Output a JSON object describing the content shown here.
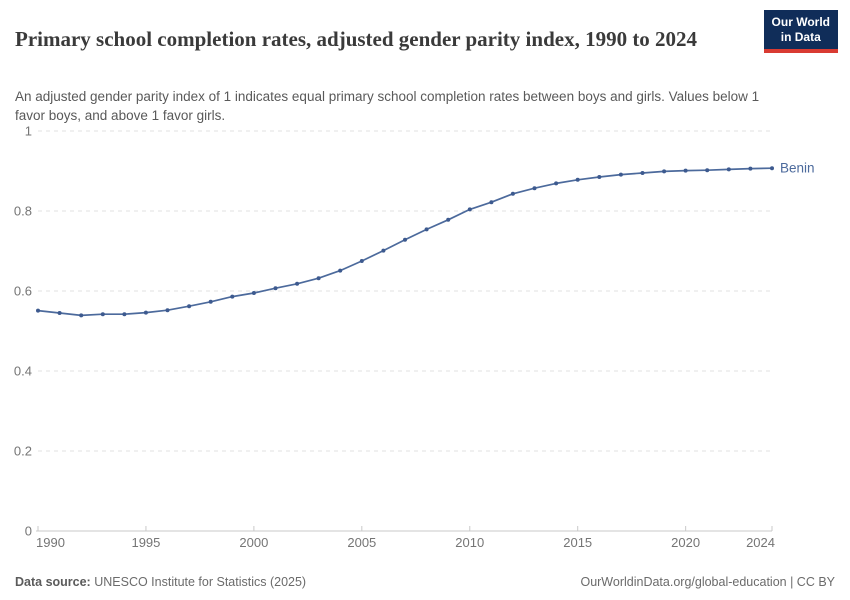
{
  "header": {
    "title": "Primary school completion rates, adjusted gender parity index, 1990 to 2024",
    "subtitle": "An adjusted gender parity index of 1 indicates equal primary school completion rates between boys and girls. Values below 1 favor boys, and above 1 favor girls.",
    "logo": {
      "line1": "Our World",
      "line2": "in Data",
      "bg_color": "#102D59",
      "accent_color": "#D93B32"
    }
  },
  "chart_data": {
    "type": "line",
    "title": "Primary school completion rates, adjusted gender parity index, 1990 to 2024",
    "x": [
      1990,
      1991,
      1992,
      1993,
      1994,
      1995,
      1996,
      1997,
      1998,
      1999,
      2000,
      2001,
      2002,
      2003,
      2004,
      2005,
      2006,
      2007,
      2008,
      2009,
      2010,
      2011,
      2012,
      2013,
      2014,
      2015,
      2016,
      2017,
      2018,
      2019,
      2020,
      2021,
      2022,
      2023,
      2024
    ],
    "series": [
      {
        "name": "Benin",
        "color": "#4C6A9C",
        "point_color": "#3D5A8F",
        "values": [
          0.551,
          0.545,
          0.539,
          0.542,
          0.542,
          0.546,
          0.552,
          0.562,
          0.573,
          0.586,
          0.595,
          0.607,
          0.618,
          0.632,
          0.651,
          0.675,
          0.701,
          0.728,
          0.754,
          0.778,
          0.804,
          0.822,
          0.843,
          0.857,
          0.869,
          0.878,
          0.885,
          0.891,
          0.895,
          0.899,
          0.901,
          0.902,
          0.904,
          0.906,
          0.907
        ]
      }
    ],
    "xlabel": "",
    "ylabel": "",
    "xlim": [
      1990,
      2024
    ],
    "ylim": [
      0,
      1
    ],
    "x_ticks": [
      1990,
      1995,
      2000,
      2005,
      2010,
      2015,
      2020,
      2024
    ],
    "y_ticks": [
      0,
      0.2,
      0.4,
      0.6,
      0.8,
      1
    ],
    "y_tick_labels": [
      "0",
      "0.2",
      "0.4",
      "0.6",
      "0.8",
      "1"
    ],
    "grid": "horizontal-dashed",
    "legend": "end-of-line-label"
  },
  "footer": {
    "source_label": "Data source:",
    "source_text": "UNESCO Institute for Statistics (2025)",
    "rights_text": "OurWorldinData.org/global-education | CC BY"
  }
}
